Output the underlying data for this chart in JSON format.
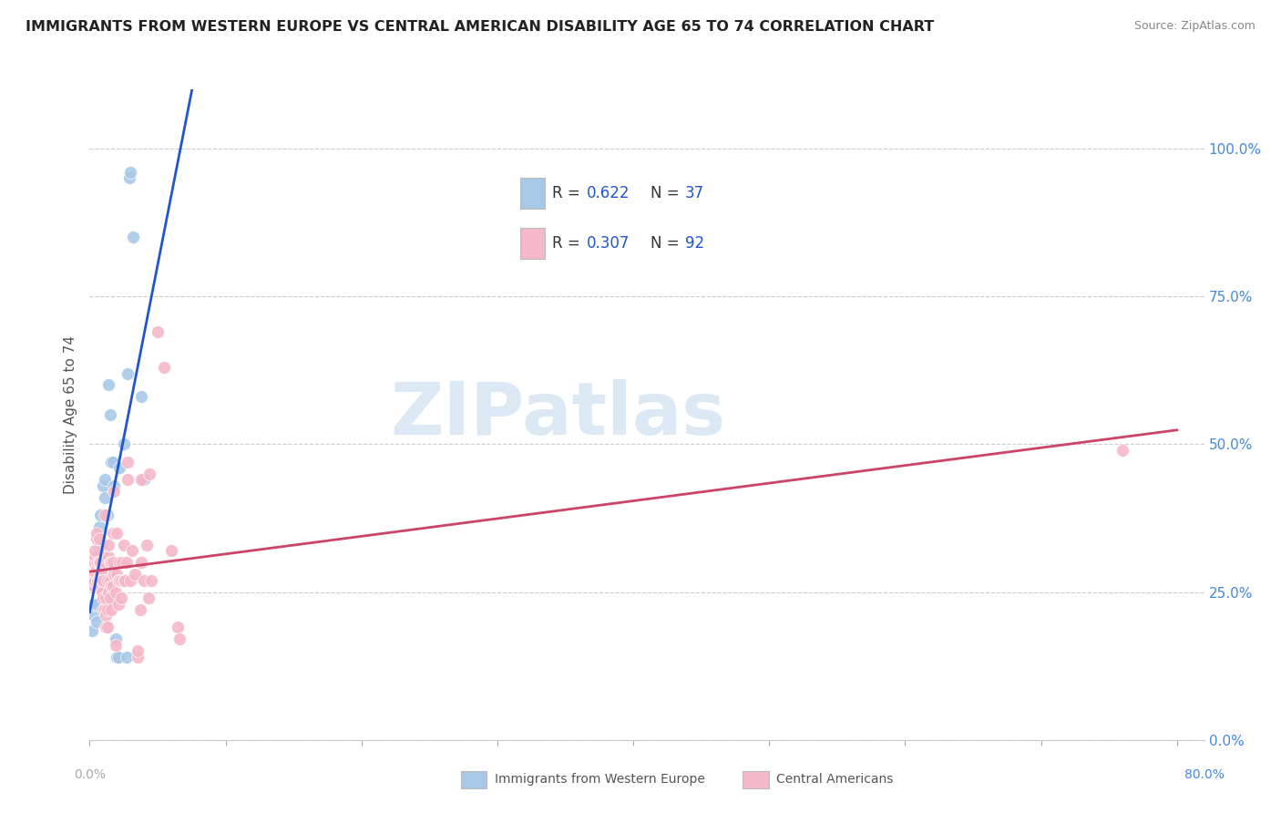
{
  "title": "IMMIGRANTS FROM WESTERN EUROPE VS CENTRAL AMERICAN DISABILITY AGE 65 TO 74 CORRELATION CHART",
  "source": "Source: ZipAtlas.com",
  "ylabel": "Disability Age 65 to 74",
  "legend_label1": "Immigrants from Western Europe",
  "legend_label2": "Central Americans",
  "R1": "0.622",
  "N1": "37",
  "R2": "0.307",
  "N2": "92",
  "blue_color": "#a8c8e8",
  "pink_color": "#f4b8c8",
  "blue_line_color": "#2255cc",
  "pink_line_color": "#cc4466",
  "ytick_color": "#4488dd",
  "xtick_color": "#aaaaaa",
  "blue_scatter": [
    [
      0.002,
      0.185
    ],
    [
      0.003,
      0.21
    ],
    [
      0.003,
      0.23
    ],
    [
      0.004,
      0.27
    ],
    [
      0.005,
      0.2
    ],
    [
      0.005,
      0.23
    ],
    [
      0.006,
      0.29
    ],
    [
      0.006,
      0.31
    ],
    [
      0.007,
      0.32
    ],
    [
      0.007,
      0.36
    ],
    [
      0.008,
      0.38
    ],
    [
      0.008,
      0.33
    ],
    [
      0.009,
      0.33
    ],
    [
      0.009,
      0.28
    ],
    [
      0.01,
      0.25
    ],
    [
      0.01,
      0.43
    ],
    [
      0.011,
      0.44
    ],
    [
      0.011,
      0.41
    ],
    [
      0.012,
      0.27
    ],
    [
      0.013,
      0.38
    ],
    [
      0.014,
      0.6
    ],
    [
      0.015,
      0.55
    ],
    [
      0.016,
      0.47
    ],
    [
      0.017,
      0.47
    ],
    [
      0.018,
      0.43
    ],
    [
      0.019,
      0.17
    ],
    [
      0.02,
      0.14
    ],
    [
      0.021,
      0.14
    ],
    [
      0.022,
      0.46
    ],
    [
      0.025,
      0.5
    ],
    [
      0.027,
      0.14
    ],
    [
      0.028,
      0.62
    ],
    [
      0.029,
      0.95
    ],
    [
      0.03,
      0.96
    ],
    [
      0.032,
      0.85
    ],
    [
      0.038,
      0.58
    ],
    [
      0.04,
      0.44
    ]
  ],
  "pink_scatter": [
    [
      0.001,
      0.28
    ],
    [
      0.002,
      0.27
    ],
    [
      0.002,
      0.28
    ],
    [
      0.002,
      0.3
    ],
    [
      0.003,
      0.26
    ],
    [
      0.003,
      0.28
    ],
    [
      0.003,
      0.27
    ],
    [
      0.003,
      0.3
    ],
    [
      0.004,
      0.3
    ],
    [
      0.004,
      0.28
    ],
    [
      0.004,
      0.27
    ],
    [
      0.004,
      0.31
    ],
    [
      0.004,
      0.32
    ],
    [
      0.005,
      0.28
    ],
    [
      0.005,
      0.29
    ],
    [
      0.005,
      0.34
    ],
    [
      0.005,
      0.35
    ],
    [
      0.006,
      0.27
    ],
    [
      0.006,
      0.27
    ],
    [
      0.006,
      0.3
    ],
    [
      0.007,
      0.27
    ],
    [
      0.007,
      0.3
    ],
    [
      0.007,
      0.34
    ],
    [
      0.008,
      0.26
    ],
    [
      0.008,
      0.28
    ],
    [
      0.008,
      0.3
    ],
    [
      0.009,
      0.25
    ],
    [
      0.009,
      0.27
    ],
    [
      0.009,
      0.29
    ],
    [
      0.01,
      0.22
    ],
    [
      0.01,
      0.24
    ],
    [
      0.01,
      0.27
    ],
    [
      0.011,
      0.22
    ],
    [
      0.011,
      0.3
    ],
    [
      0.011,
      0.31
    ],
    [
      0.011,
      0.38
    ],
    [
      0.012,
      0.19
    ],
    [
      0.012,
      0.21
    ],
    [
      0.012,
      0.24
    ],
    [
      0.013,
      0.19
    ],
    [
      0.013,
      0.22
    ],
    [
      0.013,
      0.27
    ],
    [
      0.014,
      0.25
    ],
    [
      0.014,
      0.31
    ],
    [
      0.014,
      0.33
    ],
    [
      0.015,
      0.24
    ],
    [
      0.015,
      0.27
    ],
    [
      0.015,
      0.3
    ],
    [
      0.016,
      0.22
    ],
    [
      0.016,
      0.26
    ],
    [
      0.016,
      0.3
    ],
    [
      0.017,
      0.26
    ],
    [
      0.017,
      0.3
    ],
    [
      0.017,
      0.35
    ],
    [
      0.018,
      0.28
    ],
    [
      0.018,
      0.42
    ],
    [
      0.019,
      0.16
    ],
    [
      0.019,
      0.25
    ],
    [
      0.02,
      0.28
    ],
    [
      0.02,
      0.35
    ],
    [
      0.021,
      0.23
    ],
    [
      0.021,
      0.27
    ],
    [
      0.022,
      0.27
    ],
    [
      0.022,
      0.3
    ],
    [
      0.023,
      0.24
    ],
    [
      0.023,
      0.27
    ],
    [
      0.024,
      0.3
    ],
    [
      0.025,
      0.27
    ],
    [
      0.025,
      0.33
    ],
    [
      0.026,
      0.27
    ],
    [
      0.027,
      0.3
    ],
    [
      0.028,
      0.44
    ],
    [
      0.028,
      0.47
    ],
    [
      0.03,
      0.27
    ],
    [
      0.031,
      0.32
    ],
    [
      0.033,
      0.28
    ],
    [
      0.035,
      0.14
    ],
    [
      0.035,
      0.15
    ],
    [
      0.037,
      0.22
    ],
    [
      0.038,
      0.3
    ],
    [
      0.038,
      0.44
    ],
    [
      0.04,
      0.27
    ],
    [
      0.042,
      0.33
    ],
    [
      0.043,
      0.24
    ],
    [
      0.044,
      0.45
    ],
    [
      0.045,
      0.27
    ],
    [
      0.05,
      0.69
    ],
    [
      0.055,
      0.63
    ],
    [
      0.06,
      0.32
    ],
    [
      0.065,
      0.19
    ],
    [
      0.066,
      0.17
    ],
    [
      0.76,
      0.49
    ]
  ],
  "xlim": [
    0.0,
    0.82
  ],
  "ylim": [
    0.0,
    1.1
  ],
  "xticks": [
    0.0,
    0.1,
    0.2,
    0.3,
    0.4,
    0.5,
    0.6,
    0.7,
    0.8
  ],
  "yticks": [
    0.0,
    0.25,
    0.5,
    0.75,
    1.0
  ],
  "watermark": "ZIPatlas"
}
